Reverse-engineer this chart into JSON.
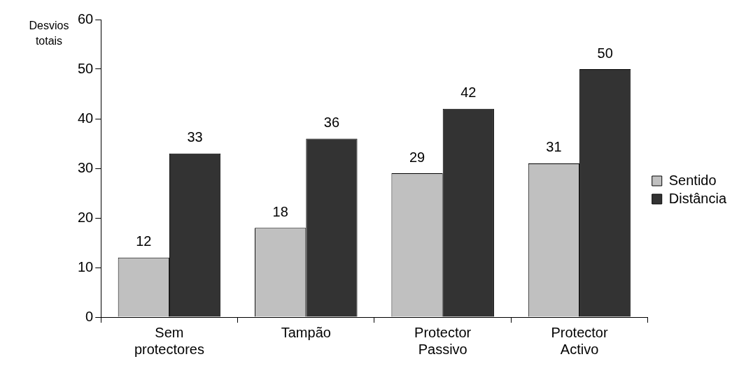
{
  "chart_data": {
    "type": "bar",
    "ylabel": "Desvios totais",
    "categories": [
      "Sem protectores",
      "Tampão",
      "Protector Passivo",
      "Protector Activo"
    ],
    "series": [
      {
        "name": "Sentido",
        "color": "#c0c0c0",
        "values": [
          12,
          18,
          29,
          31
        ]
      },
      {
        "name": "Distância",
        "color": "#333333",
        "values": [
          33,
          36,
          42,
          50
        ]
      }
    ],
    "ylim": [
      0,
      60
    ],
    "yticks": [
      0,
      10,
      20,
      30,
      40,
      50,
      60
    ],
    "grid": false,
    "legend": "right",
    "data_labels": true
  }
}
